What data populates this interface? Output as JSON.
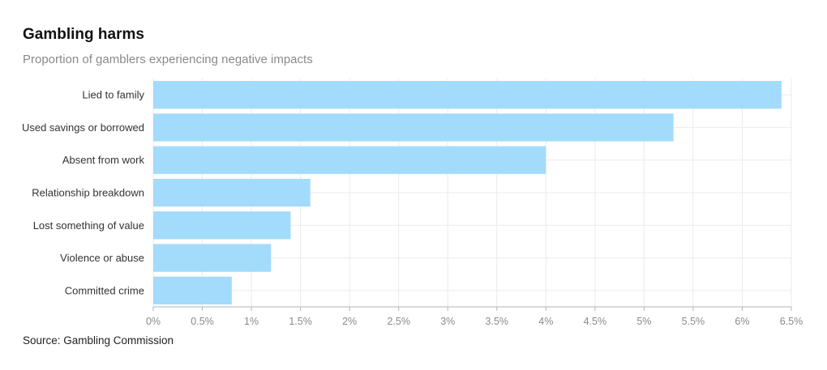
{
  "header": {
    "title": "Gambling harms",
    "subtitle": "Proportion of gamblers experiencing negative impacts"
  },
  "footer": {
    "source": "Source: Gambling Commission"
  },
  "colors": {
    "bar": "#a3dbfc",
    "grid": "#ebebeb",
    "axis": "#b5b5b5"
  },
  "chart_data": {
    "type": "bar",
    "orientation": "horizontal",
    "title": "Gambling harms",
    "subtitle": "Proportion of gamblers experiencing negative impacts",
    "categories": [
      "Lied to family",
      "Used savings or borrowed",
      "Absent from work",
      "Relationship breakdown",
      "Lost something of value",
      "Violence or abuse",
      "Committed crime"
    ],
    "values": [
      6.4,
      5.3,
      4.0,
      1.6,
      1.4,
      1.2,
      0.8
    ],
    "xlim": [
      0,
      6.5
    ],
    "xticks": [
      0,
      0.5,
      1,
      1.5,
      2,
      2.5,
      3,
      3.5,
      4,
      4.5,
      5,
      5.5,
      6,
      6.5
    ],
    "xtick_labels": [
      "0%",
      "0.5%",
      "1%",
      "1.5%",
      "2%",
      "2.5%",
      "3%",
      "3.5%",
      "4%",
      "4.5%",
      "5%",
      "5.5%",
      "6%",
      "6.5%"
    ],
    "xlabel": "",
    "ylabel": "",
    "grid": true,
    "legend": "none"
  }
}
